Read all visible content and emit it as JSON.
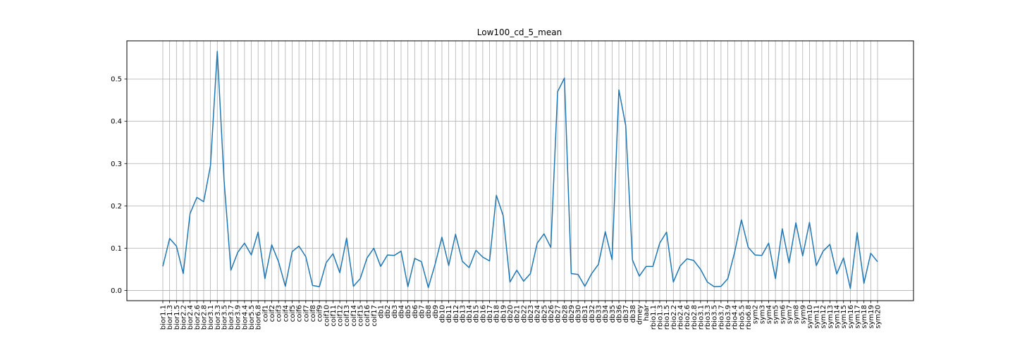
{
  "chart_data": {
    "type": "line",
    "title": "Low100_cd_5_mean",
    "xlabel": "",
    "ylabel": "",
    "ylim": [
      -0.024,
      0.59
    ],
    "grid": true,
    "line_color": "#1f77b4",
    "yticks": [
      0.0,
      0.1,
      0.2,
      0.3,
      0.4,
      0.5
    ],
    "ytick_labels": [
      "0.0",
      "0.1",
      "0.2",
      "0.3",
      "0.4",
      "0.5"
    ],
    "categories": [
      "bior1.1",
      "bior1.3",
      "bior1.5",
      "bior2.2",
      "bior2.4",
      "bior2.6",
      "bior2.8",
      "bior3.1",
      "bior3.3",
      "bior3.5",
      "bior3.7",
      "bior3.9",
      "bior4.4",
      "bior5.5",
      "bior6.8",
      "coif1",
      "coif2",
      "coif3",
      "coif4",
      "coif5",
      "coif6",
      "coif7",
      "coif8",
      "coif9",
      "coif10",
      "coif11",
      "coif12",
      "coif13",
      "coif14",
      "coif15",
      "coif16",
      "coif17",
      "db1",
      "db2",
      "db3",
      "db4",
      "db5",
      "db6",
      "db7",
      "db8",
      "db9",
      "db10",
      "db11",
      "db12",
      "db13",
      "db14",
      "db15",
      "db16",
      "db17",
      "db18",
      "db19",
      "db20",
      "db21",
      "db22",
      "db23",
      "db24",
      "db25",
      "db26",
      "db27",
      "db28",
      "db29",
      "db30",
      "db31",
      "db32",
      "db33",
      "db34",
      "db35",
      "db36",
      "db37",
      "db38",
      "dmey",
      "haar",
      "rbio1.1",
      "rbio1.3",
      "rbio1.5",
      "rbio2.2",
      "rbio2.4",
      "rbio2.6",
      "rbio2.8",
      "rbio3.1",
      "rbio3.3",
      "rbio3.5",
      "rbio3.7",
      "rbio3.9",
      "rbio4.4",
      "rbio5.5",
      "rbio6.8",
      "sym2",
      "sym3",
      "sym4",
      "sym5",
      "sym6",
      "sym7",
      "sym8",
      "sym9",
      "sym10",
      "sym11",
      "sym12",
      "sym13",
      "sym14",
      "sym15",
      "sym16",
      "sym17",
      "sym18",
      "sym19",
      "sym20"
    ],
    "values": [
      0.057,
      0.123,
      0.105,
      0.04,
      0.182,
      0.22,
      0.21,
      0.295,
      0.565,
      0.26,
      0.048,
      0.09,
      0.112,
      0.084,
      0.138,
      0.028,
      0.108,
      0.068,
      0.01,
      0.092,
      0.105,
      0.08,
      0.012,
      0.009,
      0.066,
      0.087,
      0.042,
      0.124,
      0.01,
      0.028,
      0.077,
      0.1,
      0.057,
      0.084,
      0.083,
      0.093,
      0.009,
      0.076,
      0.068,
      0.007,
      0.062,
      0.126,
      0.059,
      0.133,
      0.069,
      0.054,
      0.095,
      0.079,
      0.07,
      0.225,
      0.177,
      0.02,
      0.048,
      0.022,
      0.04,
      0.112,
      0.134,
      0.102,
      0.47,
      0.502,
      0.04,
      0.038,
      0.01,
      0.04,
      0.062,
      0.139,
      0.073,
      0.474,
      0.39,
      0.072,
      0.034,
      0.057,
      0.057,
      0.112,
      0.138,
      0.02,
      0.058,
      0.075,
      0.071,
      0.05,
      0.02,
      0.009,
      0.01,
      0.028,
      0.09,
      0.167,
      0.102,
      0.084,
      0.083,
      0.112,
      0.028,
      0.146,
      0.065,
      0.16,
      0.082,
      0.161,
      0.059,
      0.093,
      0.109,
      0.039,
      0.077,
      0.005,
      0.137,
      0.017,
      0.088,
      0.068
    ]
  }
}
